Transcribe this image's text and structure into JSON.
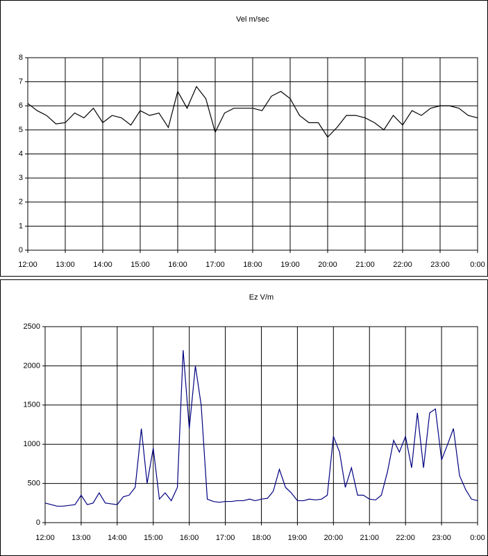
{
  "chart_data": [
    {
      "type": "line",
      "title": "Vel m/sec",
      "x": [
        12,
        12.25,
        12.5,
        12.75,
        13,
        13.25,
        13.5,
        13.75,
        14,
        14.25,
        14.5,
        14.75,
        15,
        15.25,
        15.5,
        15.75,
        16,
        16.25,
        16.5,
        16.75,
        17,
        17.25,
        17.5,
        17.75,
        18,
        18.25,
        18.5,
        18.75,
        19,
        19.25,
        19.5,
        19.75,
        20,
        20.25,
        20.5,
        20.75,
        21,
        21.25,
        21.5,
        21.75,
        22,
        22.25,
        22.5,
        22.75,
        23,
        23.25,
        23.5,
        23.75,
        24
      ],
      "series": [
        {
          "name": "Vel m/sec",
          "color": "#000000",
          "values": [
            6.1,
            5.8,
            5.6,
            5.25,
            5.3,
            5.7,
            5.5,
            5.9,
            5.3,
            5.6,
            5.5,
            5.2,
            5.8,
            5.6,
            5.7,
            5.1,
            6.6,
            5.9,
            6.8,
            6.3,
            4.9,
            5.7,
            5.9,
            5.9,
            5.9,
            5.8,
            6.4,
            6.6,
            6.3,
            5.6,
            5.3,
            5.3,
            4.7,
            5.1,
            5.6,
            5.6,
            5.5,
            5.3,
            5.0,
            5.6,
            5.2,
            5.8,
            5.6,
            5.9,
            6.0,
            6.0,
            5.9,
            5.6,
            5.5
          ]
        }
      ],
      "xlim": [
        12,
        24
      ],
      "xticks": [
        {
          "value": 12,
          "label": "12:00"
        },
        {
          "value": 13,
          "label": "13:00"
        },
        {
          "value": 14,
          "label": "14:00"
        },
        {
          "value": 15,
          "label": "15:00"
        },
        {
          "value": 16,
          "label": "16:00"
        },
        {
          "value": 17,
          "label": "17:00"
        },
        {
          "value": 18,
          "label": "18:00"
        },
        {
          "value": 19,
          "label": "19:00"
        },
        {
          "value": 20,
          "label": "20:00"
        },
        {
          "value": 21,
          "label": "21:00"
        },
        {
          "value": 22,
          "label": "22:00"
        },
        {
          "value": 23,
          "label": "23:00"
        },
        {
          "value": 24,
          "label": "0:00"
        }
      ],
      "ylim": [
        0,
        8
      ],
      "yticks": [
        0,
        1,
        2,
        3,
        4,
        5,
        6,
        7,
        8
      ],
      "grid": true
    },
    {
      "type": "line",
      "title": "Ez V/m",
      "x": [
        12,
        12.17,
        12.33,
        12.5,
        12.67,
        12.83,
        13,
        13.17,
        13.33,
        13.5,
        13.67,
        13.83,
        14,
        14.17,
        14.33,
        14.5,
        14.67,
        14.83,
        15,
        15.17,
        15.33,
        15.5,
        15.67,
        15.83,
        16,
        16.17,
        16.33,
        16.5,
        16.67,
        16.83,
        17,
        17.17,
        17.33,
        17.5,
        17.67,
        17.83,
        18,
        18.17,
        18.33,
        18.5,
        18.67,
        18.83,
        19,
        19.17,
        19.33,
        19.5,
        19.67,
        19.83,
        20,
        20.17,
        20.33,
        20.5,
        20.67,
        20.83,
        21,
        21.17,
        21.33,
        21.5,
        21.67,
        21.83,
        22,
        22.17,
        22.33,
        22.5,
        22.67,
        22.83,
        23,
        23.17,
        23.33,
        23.5,
        23.67,
        23.83,
        24
      ],
      "series": [
        {
          "name": "Ez V/m",
          "color": "#000080",
          "values": [
            250,
            230,
            210,
            210,
            220,
            230,
            350,
            230,
            250,
            380,
            250,
            240,
            230,
            330,
            350,
            450,
            1200,
            500,
            950,
            300,
            380,
            280,
            450,
            2200,
            1200,
            2000,
            1500,
            300,
            270,
            260,
            270,
            270,
            280,
            280,
            300,
            280,
            300,
            310,
            400,
            680,
            450,
            380,
            280,
            280,
            300,
            290,
            300,
            350,
            1100,
            900,
            450,
            700,
            350,
            350,
            300,
            290,
            350,
            650,
            1050,
            900,
            1100,
            700,
            1400,
            700,
            1400,
            1450,
            800,
            1000,
            1200,
            600,
            420,
            300,
            280
          ]
        }
      ],
      "xlim": [
        12,
        24
      ],
      "xticks": [
        {
          "value": 12,
          "label": "12:00"
        },
        {
          "value": 13,
          "label": "13:00"
        },
        {
          "value": 14,
          "label": "14:00"
        },
        {
          "value": 15,
          "label": "15:00"
        },
        {
          "value": 16,
          "label": "16:00"
        },
        {
          "value": 17,
          "label": "17:00"
        },
        {
          "value": 18,
          "label": "18:00"
        },
        {
          "value": 19,
          "label": "19:00"
        },
        {
          "value": 20,
          "label": "20:00"
        },
        {
          "value": 21,
          "label": "21:00"
        },
        {
          "value": 22,
          "label": "22:00"
        },
        {
          "value": 23,
          "label": "23:00"
        },
        {
          "value": 24,
          "label": "0:00"
        }
      ],
      "ylim": [
        0,
        2500
      ],
      "yticks": [
        0,
        500,
        1000,
        1500,
        2000,
        2500
      ],
      "grid": true
    }
  ]
}
